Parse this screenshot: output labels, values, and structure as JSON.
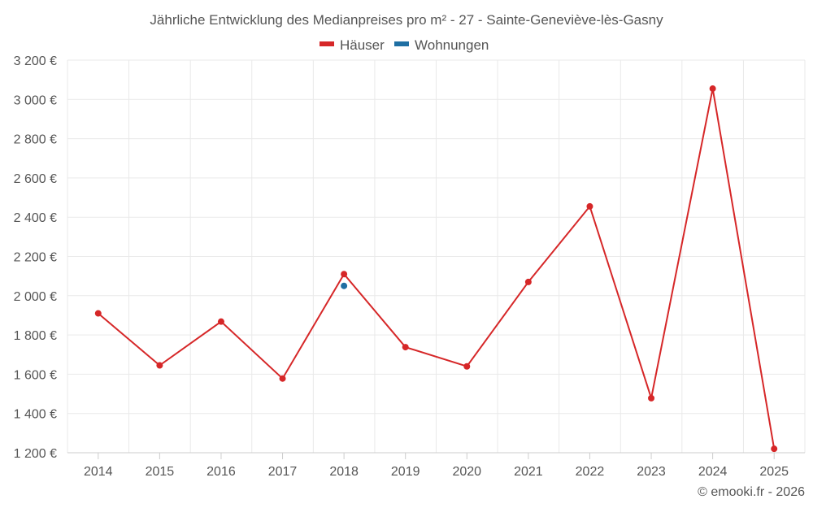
{
  "chart_data": {
    "type": "line",
    "title": "Jährliche Entwicklung des Medianpreises pro m² - 27 - Sainte-Geneviève-lès-Gasny",
    "x": [
      "2014",
      "2015",
      "2016",
      "2017",
      "2018",
      "2019",
      "2020",
      "2021",
      "2022",
      "2023",
      "2024",
      "2025"
    ],
    "y_ticks": [
      "1 200 €",
      "1 400 €",
      "1 600 €",
      "1 800 €",
      "2 000 €",
      "2 200 €",
      "2 400 €",
      "2 600 €",
      "2 800 €",
      "3 000 €",
      "3 200 €"
    ],
    "ylim": [
      1200,
      3200
    ],
    "grid": true,
    "legend_position": "top-center",
    "series": [
      {
        "name": "Häuser",
        "color": "#d62728",
        "values": [
          1910,
          1645,
          1868,
          1578,
          2110,
          1738,
          1640,
          2070,
          2455,
          1478,
          3055,
          1220
        ]
      },
      {
        "name": "Wohnungen",
        "color": "#1f6fa3",
        "values": [
          null,
          null,
          null,
          null,
          2050,
          null,
          null,
          null,
          null,
          null,
          null,
          null
        ]
      }
    ],
    "credit": "© emooki.fr - 2026"
  }
}
